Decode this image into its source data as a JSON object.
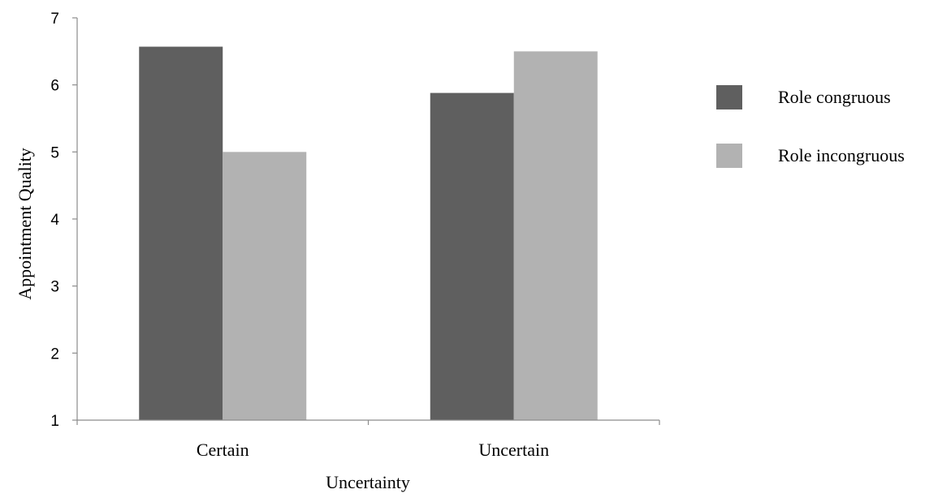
{
  "chart_data": {
    "type": "bar",
    "title": "",
    "xlabel": "Uncertainty",
    "ylabel": "Appointment Quality",
    "ylim": [
      1,
      7
    ],
    "yticks": [
      1,
      2,
      3,
      4,
      5,
      6,
      7
    ],
    "categories": [
      "Certain",
      "Uncertain"
    ],
    "series": [
      {
        "name": "Role congruous",
        "color": "#5f5f5f",
        "values": [
          6.57,
          5.88
        ]
      },
      {
        "name": "Role incongruous",
        "color": "#b2b2b2",
        "values": [
          5.0,
          6.5
        ]
      }
    ],
    "legend_position": "right",
    "grid": false
  }
}
